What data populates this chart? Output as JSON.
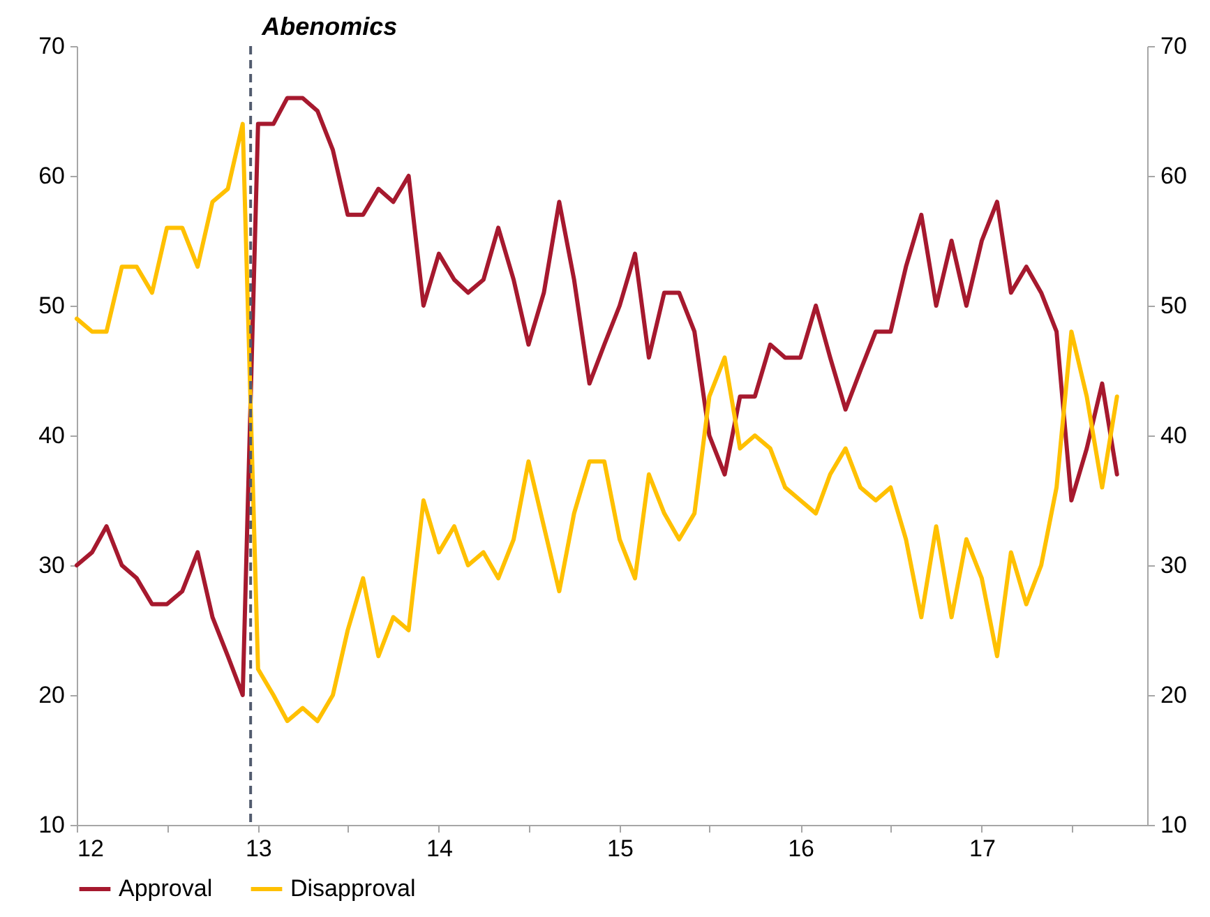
{
  "chart_data": {
    "type": "line",
    "x": [
      "2012-01",
      "2012-02",
      "2012-03",
      "2012-04",
      "2012-05",
      "2012-06",
      "2012-07",
      "2012-08",
      "2012-09",
      "2012-10",
      "2012-11",
      "2012-12",
      "2013-01",
      "2013-02",
      "2013-03",
      "2013-04",
      "2013-05",
      "2013-06",
      "2013-07",
      "2013-08",
      "2013-09",
      "2013-10",
      "2013-11",
      "2013-12",
      "2014-01",
      "2014-02",
      "2014-03",
      "2014-04",
      "2014-05",
      "2014-06",
      "2014-07",
      "2014-08",
      "2014-09",
      "2014-10",
      "2014-11",
      "2014-12",
      "2015-01",
      "2015-02",
      "2015-03",
      "2015-04",
      "2015-05",
      "2015-06",
      "2015-07",
      "2015-08",
      "2015-09",
      "2015-10",
      "2015-11",
      "2015-12",
      "2016-01",
      "2016-02",
      "2016-03",
      "2016-04",
      "2016-05",
      "2016-06",
      "2016-07",
      "2016-08",
      "2016-09",
      "2016-10",
      "2016-11",
      "2016-12",
      "2017-01",
      "2017-02",
      "2017-03",
      "2017-04",
      "2017-05",
      "2017-06",
      "2017-07",
      "2017-08",
      "2017-09",
      "2017-10"
    ],
    "series": [
      {
        "name": "Approval",
        "color": "#a6192e",
        "values": [
          30,
          31,
          33,
          30,
          29,
          27,
          27,
          28,
          31,
          26,
          23,
          20,
          64,
          64,
          66,
          66,
          65,
          62,
          57,
          57,
          59,
          58,
          60,
          50,
          54,
          52,
          51,
          52,
          56,
          52,
          47,
          51,
          58,
          52,
          44,
          47,
          50,
          54,
          46,
          51,
          51,
          48,
          40,
          37,
          43,
          43,
          47,
          46,
          46,
          50,
          46,
          42,
          45,
          48,
          48,
          53,
          57,
          50,
          55,
          50,
          55,
          58,
          51,
          53,
          51,
          48,
          35,
          39,
          44,
          37
        ]
      },
      {
        "name": "Disapproval",
        "color": "#ffc000",
        "values": [
          49,
          48,
          48,
          53,
          53,
          51,
          56,
          56,
          53,
          58,
          59,
          64,
          22,
          20,
          18,
          19,
          18,
          20,
          25,
          29,
          23,
          26,
          25,
          35,
          31,
          33,
          30,
          31,
          29,
          32,
          38,
          33,
          28,
          34,
          38,
          38,
          32,
          29,
          37,
          34,
          32,
          34,
          43,
          46,
          39,
          40,
          39,
          36,
          35,
          34,
          37,
          39,
          36,
          35,
          36,
          32,
          26,
          33,
          26,
          32,
          29,
          23,
          31,
          27,
          30,
          36,
          48,
          43,
          36,
          43
        ]
      }
    ],
    "xlim": [
      "2012-01",
      "2017-12"
    ],
    "xticks": [
      {
        "value": "2012-01",
        "label": "12"
      },
      {
        "value": "2012-07",
        "label": null
      },
      {
        "value": "2013-01",
        "label": "13"
      },
      {
        "value": "2013-07",
        "label": null
      },
      {
        "value": "2014-01",
        "label": "14"
      },
      {
        "value": "2014-07",
        "label": null
      },
      {
        "value": "2015-01",
        "label": "15"
      },
      {
        "value": "2015-07",
        "label": null
      },
      {
        "value": "2016-01",
        "label": "16"
      },
      {
        "value": "2016-07",
        "label": null
      },
      {
        "value": "2017-01",
        "label": "17"
      },
      {
        "value": "2017-07",
        "label": null
      }
    ],
    "ylim": [
      10,
      70
    ],
    "yticks": [
      10,
      20,
      30,
      40,
      50,
      60,
      70
    ],
    "y2lim": [
      10,
      70
    ],
    "y2ticks": [
      10,
      20,
      30,
      40,
      50,
      60,
      70
    ],
    "ref_lines": [
      {
        "axis": "x",
        "value": "2012-12-17",
        "label": "Abenomics",
        "color": "#525b6e",
        "line_style": "dashed"
      }
    ],
    "grid": false,
    "legend": "bottom"
  }
}
